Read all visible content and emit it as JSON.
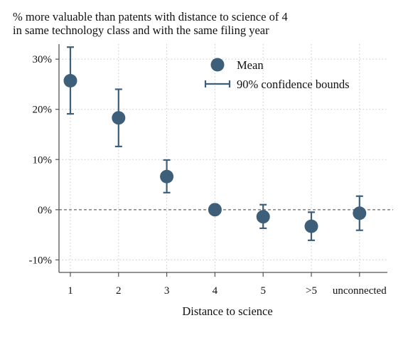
{
  "chart_data": {
    "type": "scatter",
    "title_lines": [
      "% more valuable than patents with distance to science of 4",
      "in same technology class and with the same filing year"
    ],
    "xlabel": "Distance to science",
    "ylabel": "",
    "categories": [
      "1",
      "2",
      "3",
      "4",
      "5",
      ">5",
      "unconnected"
    ],
    "yticks": [
      -10,
      0,
      10,
      20,
      30
    ],
    "ytick_labels": [
      "-10%",
      "0%",
      "10%",
      "20%",
      "30%"
    ],
    "ylim": [
      -12.5,
      33
    ],
    "grid": true,
    "reference_line": 0,
    "legend_position": "top-right",
    "legend": {
      "mean": "Mean",
      "ci": "90% confidence bounds"
    },
    "colors": {
      "marker": "#3d5f7a",
      "grid": "#c8c8c8",
      "axis": "#555555"
    },
    "series": [
      {
        "name": "Mean",
        "values": [
          25.7,
          18.3,
          6.6,
          0.0,
          -1.4,
          -3.3,
          -0.7
        ]
      },
      {
        "name": "90% confidence bounds",
        "lower": [
          19.1,
          12.6,
          3.4,
          0.0,
          -3.7,
          -6.1,
          -4.1
        ],
        "upper": [
          32.4,
          24.0,
          9.9,
          0.0,
          1.0,
          -0.5,
          2.7
        ]
      }
    ]
  }
}
